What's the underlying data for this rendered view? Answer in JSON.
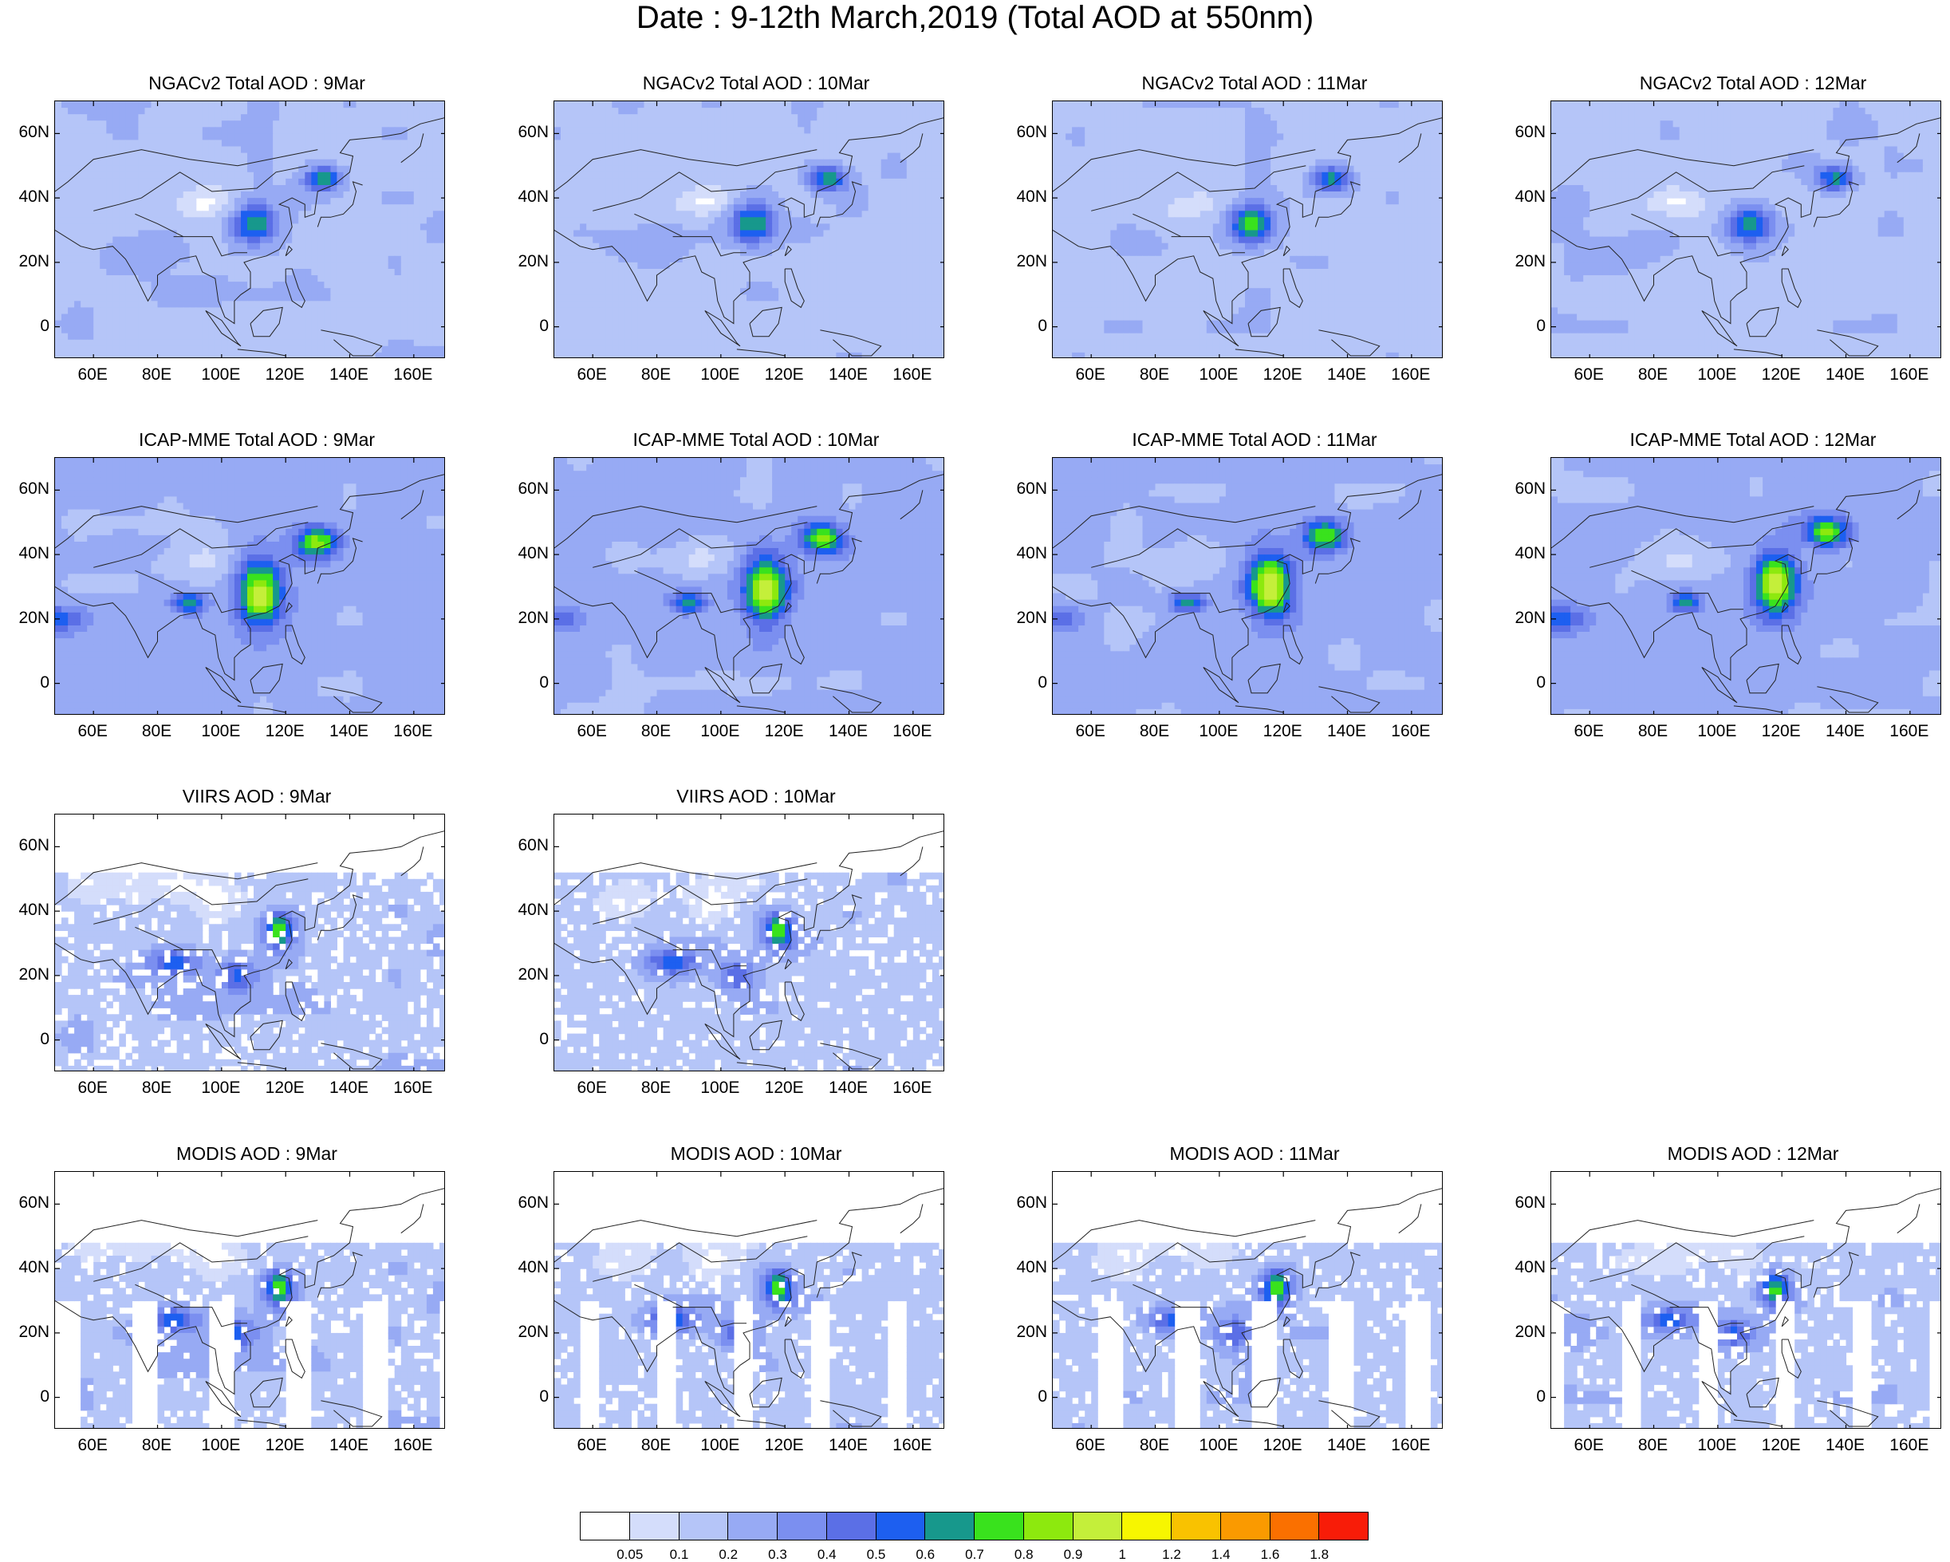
{
  "title": "Date : 9-12th March,2019 (Total AOD at 550nm)",
  "axes": {
    "lat_ticks": [
      "60N",
      "40N",
      "20N",
      "0"
    ],
    "lon_ticks": [
      "60E",
      "80E",
      "100E",
      "120E",
      "140E",
      "160E"
    ],
    "lat_range": [
      -10,
      70
    ],
    "lon_range": [
      48,
      170
    ]
  },
  "panels": [
    {
      "id": "ngac-9",
      "title": "NGACv2 Total AOD : 9Mar",
      "dataset": "model",
      "row": 0,
      "col": 0
    },
    {
      "id": "ngac-10",
      "title": "NGACv2 Total AOD : 10Mar",
      "dataset": "model",
      "row": 0,
      "col": 1
    },
    {
      "id": "ngac-11",
      "title": "NGACv2 Total AOD : 11Mar",
      "dataset": "model",
      "row": 0,
      "col": 2
    },
    {
      "id": "ngac-12",
      "title": "NGACv2 Total AOD : 12Mar",
      "dataset": "model",
      "row": 0,
      "col": 3
    },
    {
      "id": "icap-9",
      "title": "ICAP-MME Total AOD : 9Mar",
      "dataset": "ensemble",
      "row": 1,
      "col": 0
    },
    {
      "id": "icap-10",
      "title": "ICAP-MME Total AOD : 10Mar",
      "dataset": "ensemble",
      "row": 1,
      "col": 1
    },
    {
      "id": "icap-11",
      "title": "ICAP-MME Total AOD : 11Mar",
      "dataset": "ensemble",
      "row": 1,
      "col": 2
    },
    {
      "id": "icap-12",
      "title": "ICAP-MME Total AOD : 12Mar",
      "dataset": "ensemble",
      "row": 1,
      "col": 3
    },
    {
      "id": "viirs-9",
      "title": "VIIRS AOD : 9Mar",
      "dataset": "satellite",
      "row": 2,
      "col": 0
    },
    {
      "id": "viirs-10",
      "title": "VIIRS AOD : 10Mar",
      "dataset": "satellite",
      "row": 2,
      "col": 1
    },
    {
      "id": "modis-9",
      "title": "MODIS AOD : 9Mar",
      "dataset": "swath",
      "row": 3,
      "col": 0
    },
    {
      "id": "modis-10",
      "title": "MODIS AOD : 10Mar",
      "dataset": "swath",
      "row": 3,
      "col": 1
    },
    {
      "id": "modis-11",
      "title": "MODIS AOD : 11Mar",
      "dataset": "swath",
      "row": 3,
      "col": 2
    },
    {
      "id": "modis-12",
      "title": "MODIS AOD : 12Mar",
      "dataset": "swath",
      "row": 3,
      "col": 3
    }
  ],
  "colorbar": {
    "colors": [
      "#ffffff",
      "#d4ddfb",
      "#b5c5f8",
      "#97aaf4",
      "#7b8ff0",
      "#5b6fe6",
      "#1d5ff0",
      "#17988c",
      "#39e21d",
      "#8de90e",
      "#c4ef3a",
      "#f7f600",
      "#f9c200",
      "#fa9a00",
      "#fa7000",
      "#f81c08"
    ],
    "labels": [
      "0.05",
      "0.1",
      "0.2",
      "0.3",
      "0.4",
      "0.5",
      "0.6",
      "0.7",
      "0.8",
      "0.9",
      "1",
      "1.2",
      "1.4",
      "1.6",
      "1.8"
    ]
  }
}
